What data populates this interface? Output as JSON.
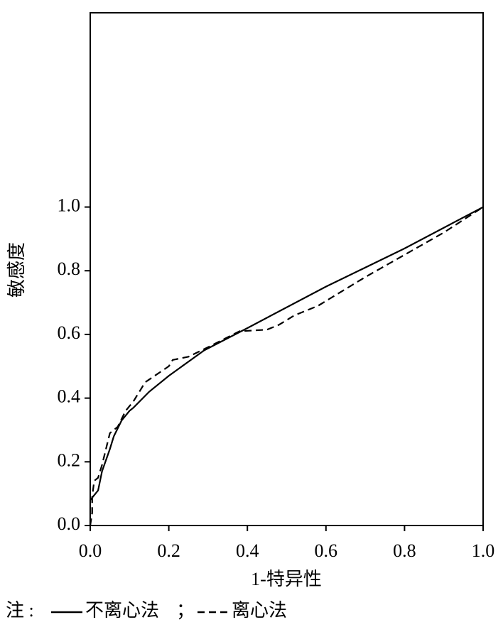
{
  "chart_data": {
    "type": "line",
    "x_label": "1-特异性",
    "y_label": "敏感度",
    "legend_note": "注 :",
    "legend_separator": "；",
    "xlim": [
      0,
      1
    ],
    "ylim": [
      0,
      1.61
    ],
    "xticks": [
      {
        "value": 0,
        "label": "0.0"
      },
      0.2,
      0.4,
      0.6,
      0.8,
      {
        "value": 1,
        "label": "1.0"
      }
    ],
    "yticks": [
      {
        "value": 0,
        "label": "0.0"
      },
      0.2,
      0.4,
      0.6,
      0.8,
      {
        "value": 1,
        "label": "1.0"
      }
    ],
    "series": [
      {
        "name": "不离心法",
        "color": "#000000",
        "dash": "solid",
        "x": [
          0,
          0,
          0.02,
          0.03,
          0.05,
          0.06,
          0.08,
          0.1,
          0.11,
          0.15,
          0.2,
          0.29,
          0.4,
          0.6,
          0.8,
          1
        ],
        "values": [
          0,
          0.08,
          0.11,
          0.17,
          0.24,
          0.28,
          0.33,
          0.36,
          0.37,
          0.42,
          0.47,
          0.55,
          0.62,
          0.75,
          0.87,
          1
        ]
      },
      {
        "name": "离心法",
        "color": "#000000",
        "dash": "dashed",
        "x": [
          0,
          0.005,
          0.005,
          0.01,
          0.02,
          0.03,
          0.05,
          0.07,
          0.09,
          0.11,
          0.14,
          0.2,
          0.21,
          0.25,
          0.3,
          0.38,
          0.45,
          0.48,
          0.52,
          0.58,
          0.7,
          0.8,
          0.9,
          1
        ],
        "values": [
          0,
          0.04,
          0.09,
          0.14,
          0.15,
          0.19,
          0.29,
          0.31,
          0.36,
          0.39,
          0.45,
          0.5,
          0.52,
          0.53,
          0.56,
          0.61,
          0.615,
          0.63,
          0.66,
          0.69,
          0.78,
          0.85,
          0.92,
          1
        ]
      }
    ]
  }
}
